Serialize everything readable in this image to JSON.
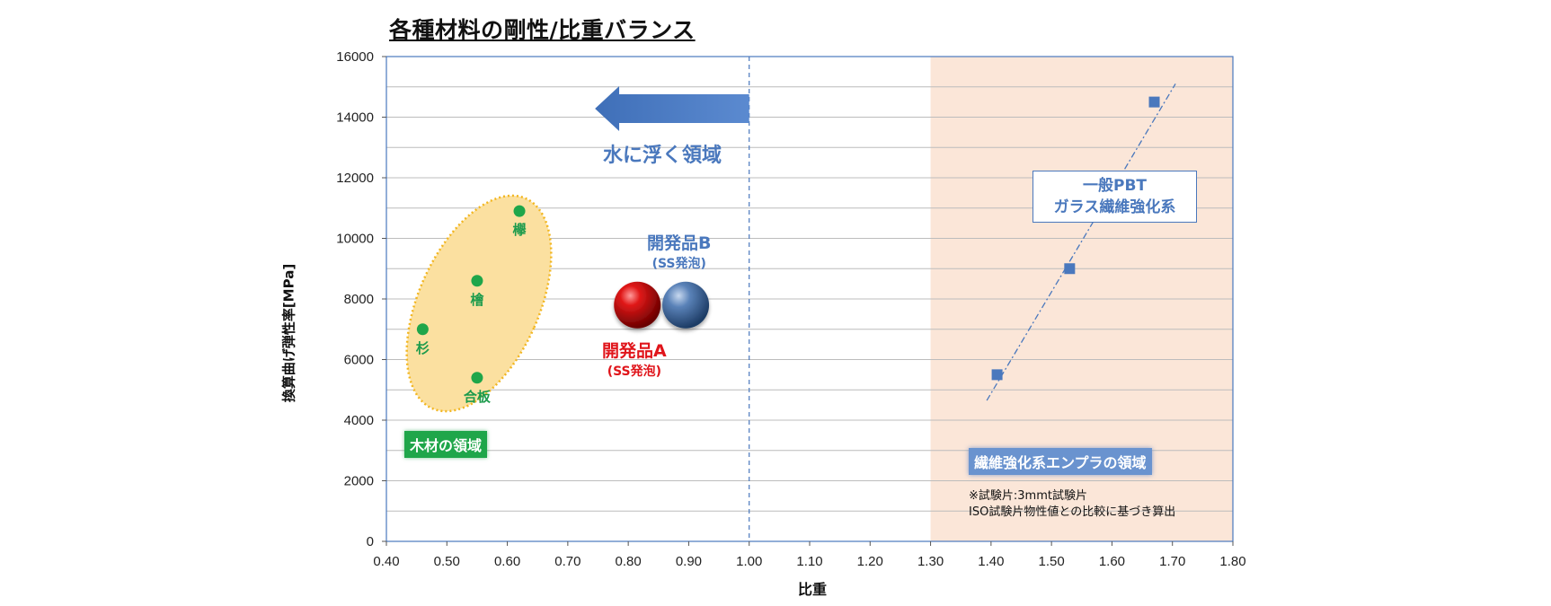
{
  "chart_data": {
    "type": "scatter",
    "title": "各種材料の剛性/比重バランス",
    "xlabel": "比重",
    "ylabel": "換算曲げ弾性率[MPa]",
    "xlim": [
      0.4,
      1.8
    ],
    "ylim": [
      0,
      16000
    ],
    "x_ticks": [
      "0.40",
      "0.50",
      "0.60",
      "0.70",
      "0.80",
      "0.90",
      "1.00",
      "1.10",
      "1.20",
      "1.30",
      "1.40",
      "1.50",
      "1.60",
      "1.70",
      "1.80"
    ],
    "y_ticks": [
      "0",
      "2000",
      "4000",
      "6000",
      "8000",
      "10000",
      "12000",
      "14000",
      "16000"
    ],
    "grid": "horizontal",
    "wood": {
      "region_label": "木材の領域",
      "points": [
        {
          "label": "杉",
          "x": 0.46,
          "y": 7000
        },
        {
          "label": "合板",
          "x": 0.55,
          "y": 5400
        },
        {
          "label": "檜",
          "x": 0.55,
          "y": 8600
        },
        {
          "label": "欅",
          "x": 0.62,
          "y": 10900
        }
      ]
    },
    "pbt": {
      "box_line1": "一般PBT",
      "box_line2": "ガラス繊維強化系",
      "region_label": "繊維強化系エンプラの領域",
      "points": [
        {
          "x": 1.41,
          "y": 5500
        },
        {
          "x": 1.53,
          "y": 9000
        },
        {
          "x": 1.67,
          "y": 14500
        }
      ]
    },
    "products": {
      "a_name": "開発品A",
      "a_sub": "(SS発泡)",
      "b_name": "開発品B",
      "b_sub": "(SS発泡)",
      "a_x": 0.815,
      "b_x": 0.895,
      "y": 7800
    },
    "float_region_label": "水に浮く領域",
    "float_boundary_x": 1.0,
    "frp_region_start_x": 1.3,
    "note_line1": "※試験片:3mmt試験片",
    "note_line2": "ISO試験片物性値との比較に基づき算出",
    "colors": {
      "wood_marker": "#1fa64a",
      "wood_region": "#fbe0a0",
      "pbt_marker": "#4a78bd",
      "frp_region": "#fbe6d8",
      "product_a": "#e0151b",
      "product_b": "#4a78bd"
    }
  }
}
